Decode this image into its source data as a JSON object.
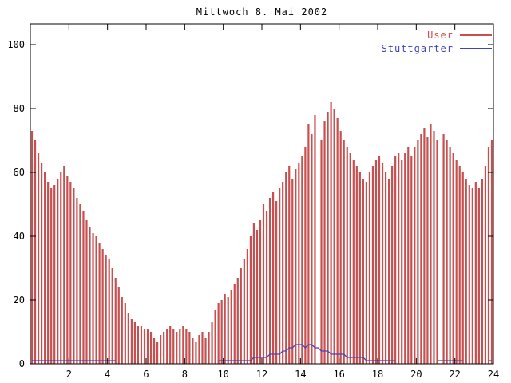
{
  "chart_data": {
    "type": "bar",
    "title": "Mittwoch 8. Mai 2002",
    "xlabel": "",
    "ylabel": "",
    "xlim": [
      0,
      24
    ],
    "ylim": [
      0,
      106
    ],
    "x_ticks": [
      2,
      4,
      6,
      8,
      10,
      12,
      14,
      16,
      18,
      20,
      22,
      24
    ],
    "y_ticks": [
      0,
      20,
      40,
      60,
      80,
      100
    ],
    "grid": false,
    "legend_position": "top-right",
    "sample_interval_minutes": 10,
    "series": [
      {
        "name": "User",
        "type": "impulses",
        "color": "#c64f4f",
        "values": [
          73,
          70,
          66,
          63,
          60,
          57,
          55,
          56,
          58,
          60,
          62,
          59,
          57,
          55,
          52,
          50,
          48,
          45,
          43,
          41,
          40,
          38,
          36,
          34,
          33,
          30,
          27,
          24,
          21,
          19,
          16,
          14,
          13,
          12,
          12,
          11,
          11,
          10,
          8,
          7,
          9,
          10,
          11,
          12,
          11,
          10,
          11,
          12,
          11,
          10,
          8,
          7,
          9,
          10,
          8,
          10,
          13,
          17,
          19,
          20,
          22,
          21,
          23,
          25,
          27,
          30,
          33,
          36,
          40,
          44,
          42,
          45,
          50,
          48,
          52,
          54,
          51,
          55,
          57,
          60,
          62,
          58,
          61,
          63,
          65,
          68,
          75,
          72,
          78,
          null,
          70,
          76,
          79,
          82,
          80,
          77,
          73,
          70,
          68,
          66,
          64,
          62,
          60,
          58,
          57,
          60,
          62,
          64,
          65,
          63,
          60,
          58,
          62,
          65,
          66,
          64,
          66,
          68,
          65,
          68,
          70,
          72,
          74,
          71,
          75,
          73,
          70,
          null,
          72,
          70,
          68,
          66,
          64,
          62,
          60,
          58,
          56,
          55,
          57,
          55,
          58,
          62,
          68,
          70
        ]
      },
      {
        "name": "Stuttgarter",
        "type": "line",
        "color": "#4343b4",
        "values": [
          1,
          1,
          1,
          1,
          1,
          1,
          1,
          1,
          1,
          1,
          1,
          1,
          1,
          1,
          1,
          1,
          1,
          1,
          1,
          1,
          1,
          1,
          1,
          1,
          1,
          1,
          1,
          null,
          null,
          null,
          null,
          null,
          null,
          null,
          null,
          null,
          null,
          null,
          null,
          null,
          null,
          null,
          null,
          null,
          null,
          null,
          null,
          null,
          null,
          null,
          null,
          null,
          null,
          null,
          null,
          null,
          null,
          null,
          1,
          1,
          1,
          1,
          1,
          1,
          1,
          1,
          1,
          1,
          1,
          2,
          2,
          2,
          2,
          2,
          3,
          3,
          3,
          3,
          4,
          4,
          5,
          5,
          6,
          6,
          6,
          5,
          6,
          6,
          5,
          5,
          4,
          4,
          4,
          3,
          3,
          3,
          3,
          3,
          2,
          2,
          2,
          2,
          2,
          2,
          1,
          1,
          1,
          1,
          1,
          1,
          1,
          1,
          1,
          1,
          null,
          null,
          null,
          null,
          null,
          null,
          null,
          null,
          null,
          null,
          null,
          null,
          1,
          1,
          1,
          1,
          1,
          1,
          1,
          1,
          1,
          null,
          null,
          null,
          null,
          null,
          null,
          null,
          1,
          1
        ]
      }
    ]
  }
}
